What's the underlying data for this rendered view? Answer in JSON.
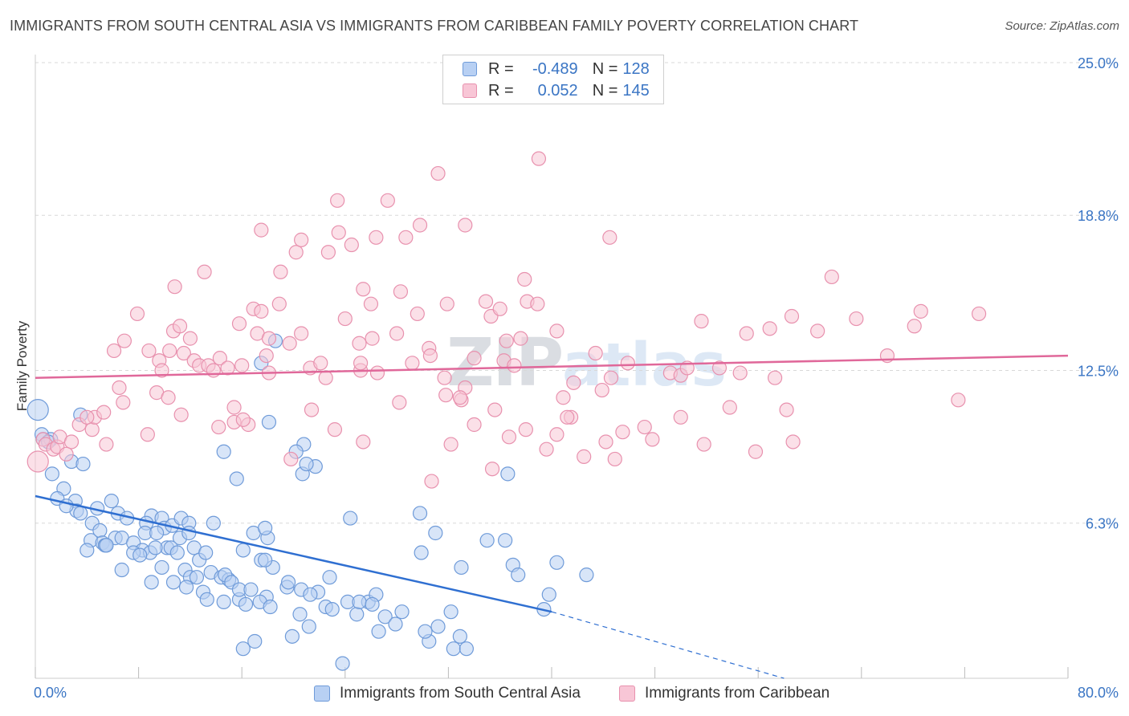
{
  "title": "IMMIGRANTS FROM SOUTH CENTRAL ASIA VS IMMIGRANTS FROM CARIBBEAN FAMILY POVERTY CORRELATION CHART",
  "source": "Source: ZipAtlas.com",
  "watermark": {
    "zip": "ZIP",
    "atlas": "atlas"
  },
  "legend": {
    "r_label": "R =",
    "n_label": "N =",
    "rows": [
      {
        "r": "-0.489",
        "n": "128",
        "color": "#6f9bd9"
      },
      {
        "r": "0.052",
        "n": "145",
        "color": "#e891ae"
      }
    ]
  },
  "chart_data": {
    "type": "scatter",
    "title": "IMMIGRANTS FROM SOUTH CENTRAL ASIA VS IMMIGRANTS FROM CARIBBEAN FAMILY POVERTY CORRELATION CHART",
    "xlabel": "",
    "ylabel": "Family Poverty",
    "xlim": [
      0,
      80
    ],
    "ylim": [
      0,
      25
    ],
    "x_tick_labels": {
      "min": "0.0%",
      "max": "80.0%"
    },
    "y_ticks": [
      {
        "value": 6.3,
        "label": "6.3%"
      },
      {
        "value": 12.5,
        "label": "12.5%"
      },
      {
        "value": 18.8,
        "label": "18.8%"
      },
      {
        "value": 25.0,
        "label": "25.0%"
      }
    ],
    "grid": true,
    "series": [
      {
        "name": "Immigrants from South Central Asia",
        "color": "#6f9bd9",
        "fill": "#b8d0f3",
        "trend": {
          "x_start": 0,
          "y_start": 7.4,
          "x_end": 40,
          "y_end": 2.7,
          "dashed_x_end": 58,
          "dashed_y_end": 0.0
        },
        "points": [
          [
            0.2,
            10.9
          ],
          [
            0.5,
            9.9
          ],
          [
            0.6,
            9.7
          ],
          [
            1.2,
            9.7
          ],
          [
            1.0,
            9.6
          ],
          [
            2.8,
            8.8
          ],
          [
            1.3,
            8.3
          ],
          [
            3.5,
            10.7
          ],
          [
            3.7,
            8.7
          ],
          [
            2.2,
            7.7
          ],
          [
            1.7,
            7.3
          ],
          [
            3.1,
            7.2
          ],
          [
            3.2,
            6.8
          ],
          [
            2.4,
            7.0
          ],
          [
            3.5,
            6.7
          ],
          [
            4.8,
            6.9
          ],
          [
            5.9,
            7.2
          ],
          [
            6.4,
            6.7
          ],
          [
            7.1,
            6.5
          ],
          [
            9.0,
            6.6
          ],
          [
            8.6,
            6.3
          ],
          [
            9.8,
            6.5
          ],
          [
            10.0,
            6.1
          ],
          [
            10.6,
            6.2
          ],
          [
            11.3,
            6.5
          ],
          [
            11.9,
            6.3
          ],
          [
            4.4,
            6.3
          ],
          [
            4.3,
            5.6
          ],
          [
            5.0,
            6.0
          ],
          [
            5.2,
            5.5
          ],
          [
            5.4,
            5.4
          ],
          [
            6.2,
            5.7
          ],
          [
            6.7,
            5.7
          ],
          [
            7.6,
            5.5
          ],
          [
            8.5,
            5.9
          ],
          [
            9.4,
            5.9
          ],
          [
            10.2,
            5.3
          ],
          [
            11.2,
            5.7
          ],
          [
            11.9,
            5.9
          ],
          [
            4.0,
            5.2
          ],
          [
            5.5,
            5.4
          ],
          [
            8.3,
            5.2
          ],
          [
            8.9,
            5.1
          ],
          [
            9.3,
            5.3
          ],
          [
            9.8,
            4.5
          ],
          [
            10.5,
            5.3
          ],
          [
            11.0,
            5.1
          ],
          [
            12.3,
            5.3
          ],
          [
            12.7,
            4.8
          ],
          [
            11.6,
            4.4
          ],
          [
            13.2,
            5.1
          ],
          [
            13.6,
            4.3
          ],
          [
            14.4,
            4.1
          ],
          [
            15.0,
            4.0
          ],
          [
            16.1,
            5.2
          ],
          [
            17.5,
            4.8
          ],
          [
            18.4,
            4.5
          ],
          [
            12.0,
            4.1
          ],
          [
            12.5,
            4.1
          ],
          [
            13.0,
            3.5
          ],
          [
            13.3,
            3.2
          ],
          [
            14.6,
            3.1
          ],
          [
            15.8,
            3.2
          ],
          [
            16.3,
            3.0
          ],
          [
            17.9,
            3.3
          ],
          [
            17.4,
            3.1
          ],
          [
            18.2,
            2.9
          ],
          [
            19.5,
            3.7
          ],
          [
            20.5,
            2.6
          ],
          [
            21.2,
            2.1
          ],
          [
            21.9,
            3.5
          ],
          [
            22.8,
            4.1
          ],
          [
            24.9,
            2.6
          ],
          [
            24.2,
            3.1
          ],
          [
            22.5,
            2.9
          ],
          [
            23.0,
            2.8
          ],
          [
            25.8,
            3.1
          ],
          [
            25.1,
            3.1
          ],
          [
            27.1,
            2.5
          ],
          [
            27.9,
            2.2
          ],
          [
            29.9,
            5.1
          ],
          [
            30.5,
            1.5
          ],
          [
            30.2,
            1.9
          ],
          [
            32.9,
            1.7
          ],
          [
            31.2,
            2.1
          ],
          [
            32.4,
            1.2
          ],
          [
            33.4,
            1.2
          ],
          [
            26.6,
            1.9
          ],
          [
            23.8,
            0.6
          ],
          [
            19.9,
            1.7
          ],
          [
            16.1,
            1.2
          ],
          [
            17.0,
            1.5
          ],
          [
            5.5,
            5.4
          ],
          [
            6.7,
            4.4
          ],
          [
            7.6,
            5.1
          ],
          [
            8.1,
            5.0
          ],
          [
            9.0,
            3.9
          ],
          [
            10.7,
            3.9
          ],
          [
            11.7,
            3.7
          ],
          [
            14.7,
            4.2
          ],
          [
            15.2,
            3.9
          ],
          [
            15.8,
            3.6
          ],
          [
            16.7,
            3.6
          ],
          [
            16.9,
            5.9
          ],
          [
            17.8,
            4.8
          ],
          [
            18.0,
            5.7
          ],
          [
            19.6,
            3.9
          ],
          [
            20.6,
            3.6
          ],
          [
            21.3,
            3.4
          ],
          [
            21.7,
            8.6
          ],
          [
            20.7,
            8.3
          ],
          [
            21.0,
            8.7
          ],
          [
            24.4,
            6.5
          ],
          [
            26.4,
            3.4
          ],
          [
            28.4,
            2.7
          ],
          [
            31.0,
            5.9
          ],
          [
            33.0,
            4.5
          ],
          [
            37.0,
            4.6
          ],
          [
            37.4,
            4.2
          ],
          [
            35.0,
            5.6
          ],
          [
            39.4,
            2.8
          ],
          [
            40.4,
            4.7
          ],
          [
            42.7,
            4.2
          ],
          [
            36.4,
            5.6
          ],
          [
            17.5,
            12.8
          ],
          [
            29.8,
            6.7
          ],
          [
            18.6,
            13.7
          ],
          [
            20.8,
            9.5
          ],
          [
            20.2,
            9.2
          ],
          [
            14.6,
            9.2
          ],
          [
            15.6,
            8.1
          ],
          [
            17.8,
            6.1
          ],
          [
            13.8,
            6.3
          ],
          [
            26.1,
            3.0
          ],
          [
            32.2,
            2.7
          ],
          [
            39.8,
            3.4
          ],
          [
            18.1,
            10.4
          ],
          [
            36.6,
            8.3
          ]
        ]
      },
      {
        "name": "Immigrants from Caribbean",
        "color": "#e891ae",
        "fill": "#f8c6d6",
        "trend": {
          "x_start": 0,
          "y_start": 12.2,
          "x_end": 80,
          "y_end": 13.1
        },
        "points": [
          [
            0.2,
            8.8
          ],
          [
            0.6,
            9.7
          ],
          [
            0.8,
            9.5
          ],
          [
            1.4,
            9.3
          ],
          [
            1.7,
            9.4
          ],
          [
            1.9,
            9.8
          ],
          [
            2.8,
            9.6
          ],
          [
            2.4,
            9.1
          ],
          [
            3.4,
            10.3
          ],
          [
            4.4,
            10.1
          ],
          [
            4.6,
            10.6
          ],
          [
            4.0,
            10.6
          ],
          [
            5.3,
            10.8
          ],
          [
            5.5,
            9.5
          ],
          [
            6.5,
            11.8
          ],
          [
            6.8,
            11.2
          ],
          [
            6.1,
            13.3
          ],
          [
            6.9,
            13.7
          ],
          [
            7.9,
            14.8
          ],
          [
            8.8,
            13.3
          ],
          [
            9.6,
            12.9
          ],
          [
            9.8,
            12.5
          ],
          [
            9.4,
            11.6
          ],
          [
            10.3,
            11.4
          ],
          [
            10.4,
            13.3
          ],
          [
            10.7,
            14.1
          ],
          [
            10.8,
            15.9
          ],
          [
            11.2,
            14.3
          ],
          [
            12.0,
            13.8
          ],
          [
            11.5,
            13.2
          ],
          [
            12.3,
            12.9
          ],
          [
            12.7,
            12.7
          ],
          [
            13.4,
            12.7
          ],
          [
            13.1,
            16.5
          ],
          [
            13.8,
            12.5
          ],
          [
            14.3,
            13.0
          ],
          [
            14.9,
            12.6
          ],
          [
            15.8,
            14.4
          ],
          [
            16.0,
            12.7
          ],
          [
            15.4,
            10.4
          ],
          [
            15.4,
            11.0
          ],
          [
            16.5,
            10.3
          ],
          [
            16.9,
            15.0
          ],
          [
            17.2,
            14.0
          ],
          [
            17.5,
            14.9
          ],
          [
            17.5,
            18.2
          ],
          [
            17.9,
            13.1
          ],
          [
            18.1,
            12.4
          ],
          [
            18.1,
            13.8
          ],
          [
            18.9,
            15.2
          ],
          [
            19.0,
            16.5
          ],
          [
            19.7,
            13.6
          ],
          [
            20.2,
            17.3
          ],
          [
            20.6,
            14.0
          ],
          [
            20.6,
            17.8
          ],
          [
            21.3,
            12.6
          ],
          [
            22.1,
            12.8
          ],
          [
            22.5,
            12.2
          ],
          [
            22.7,
            17.3
          ],
          [
            23.5,
            18.1
          ],
          [
            23.4,
            19.4
          ],
          [
            24.5,
            17.6
          ],
          [
            24.0,
            14.6
          ],
          [
            25.1,
            13.6
          ],
          [
            25.2,
            12.5
          ],
          [
            25.2,
            12.8
          ],
          [
            25.4,
            15.8
          ],
          [
            26.1,
            13.8
          ],
          [
            26.4,
            17.9
          ],
          [
            26.0,
            15.2
          ],
          [
            26.5,
            12.4
          ],
          [
            27.3,
            19.4
          ],
          [
            28.0,
            14.0
          ],
          [
            28.3,
            15.7
          ],
          [
            28.7,
            17.9
          ],
          [
            29.2,
            12.8
          ],
          [
            29.8,
            18.4
          ],
          [
            29.6,
            14.8
          ],
          [
            30.5,
            13.4
          ],
          [
            30.6,
            13.1
          ],
          [
            31.2,
            20.5
          ],
          [
            31.7,
            12.2
          ],
          [
            31.9,
            15.2
          ],
          [
            31.8,
            11.5
          ],
          [
            32.2,
            9.5
          ],
          [
            33.0,
            11.3
          ],
          [
            33.3,
            11.8
          ],
          [
            33.3,
            18.4
          ],
          [
            34.0,
            10.3
          ],
          [
            34.9,
            15.3
          ],
          [
            34.0,
            13.0
          ],
          [
            35.3,
            14.7
          ],
          [
            35.6,
            10.9
          ],
          [
            36.0,
            15.0
          ],
          [
            36.3,
            12.9
          ],
          [
            36.5,
            13.7
          ],
          [
            37.1,
            12.7
          ],
          [
            37.6,
            13.8
          ],
          [
            37.9,
            16.2
          ],
          [
            38.1,
            15.3
          ],
          [
            38.9,
            15.2
          ],
          [
            39.0,
            21.1
          ],
          [
            40.4,
            14.1
          ],
          [
            40.4,
            9.9
          ],
          [
            40.9,
            11.4
          ],
          [
            41.5,
            10.6
          ],
          [
            41.7,
            12.0
          ],
          [
            42.5,
            9.0
          ],
          [
            44.5,
            17.9
          ],
          [
            43.4,
            13.2
          ],
          [
            43.9,
            11.7
          ],
          [
            44.6,
            12.2
          ],
          [
            44.9,
            8.9
          ],
          [
            45.9,
            12.8
          ],
          [
            47.2,
            10.2
          ],
          [
            49.2,
            12.4
          ],
          [
            50.0,
            12.3
          ],
          [
            50.5,
            12.6
          ],
          [
            51.6,
            14.5
          ],
          [
            53.0,
            12.6
          ],
          [
            54.6,
            12.4
          ],
          [
            55.1,
            14.0
          ],
          [
            56.9,
            14.2
          ],
          [
            57.3,
            12.2
          ],
          [
            58.2,
            10.9
          ],
          [
            58.6,
            14.7
          ],
          [
            61.7,
            16.3
          ],
          [
            60.6,
            14.1
          ],
          [
            63.6,
            14.6
          ],
          [
            66.0,
            13.1
          ],
          [
            68.1,
            14.3
          ],
          [
            68.6,
            14.9
          ],
          [
            71.5,
            11.3
          ],
          [
            73.1,
            14.8
          ],
          [
            8.7,
            9.9
          ],
          [
            11.3,
            10.7
          ],
          [
            14.2,
            10.2
          ],
          [
            16.1,
            10.5
          ],
          [
            19.8,
            8.9
          ],
          [
            21.4,
            10.9
          ],
          [
            23.2,
            10.1
          ],
          [
            25.4,
            9.6
          ],
          [
            28.2,
            11.2
          ],
          [
            30.7,
            8.0
          ],
          [
            32.9,
            11.4
          ],
          [
            35.4,
            8.5
          ],
          [
            36.7,
            9.8
          ],
          [
            38.0,
            10.1
          ],
          [
            39.6,
            9.3
          ],
          [
            41.2,
            10.6
          ],
          [
            44.2,
            9.6
          ],
          [
            45.5,
            10.0
          ],
          [
            47.8,
            9.7
          ],
          [
            50.0,
            10.6
          ],
          [
            51.8,
            9.5
          ],
          [
            53.8,
            11.0
          ],
          [
            55.8,
            9.2
          ],
          [
            58.7,
            9.6
          ]
        ]
      }
    ]
  },
  "bottom_legend": [
    {
      "label": "Immigrants from South Central Asia",
      "color": "#6f9bd9"
    },
    {
      "label": "Immigrants from Caribbean",
      "color": "#e891ae"
    }
  ]
}
